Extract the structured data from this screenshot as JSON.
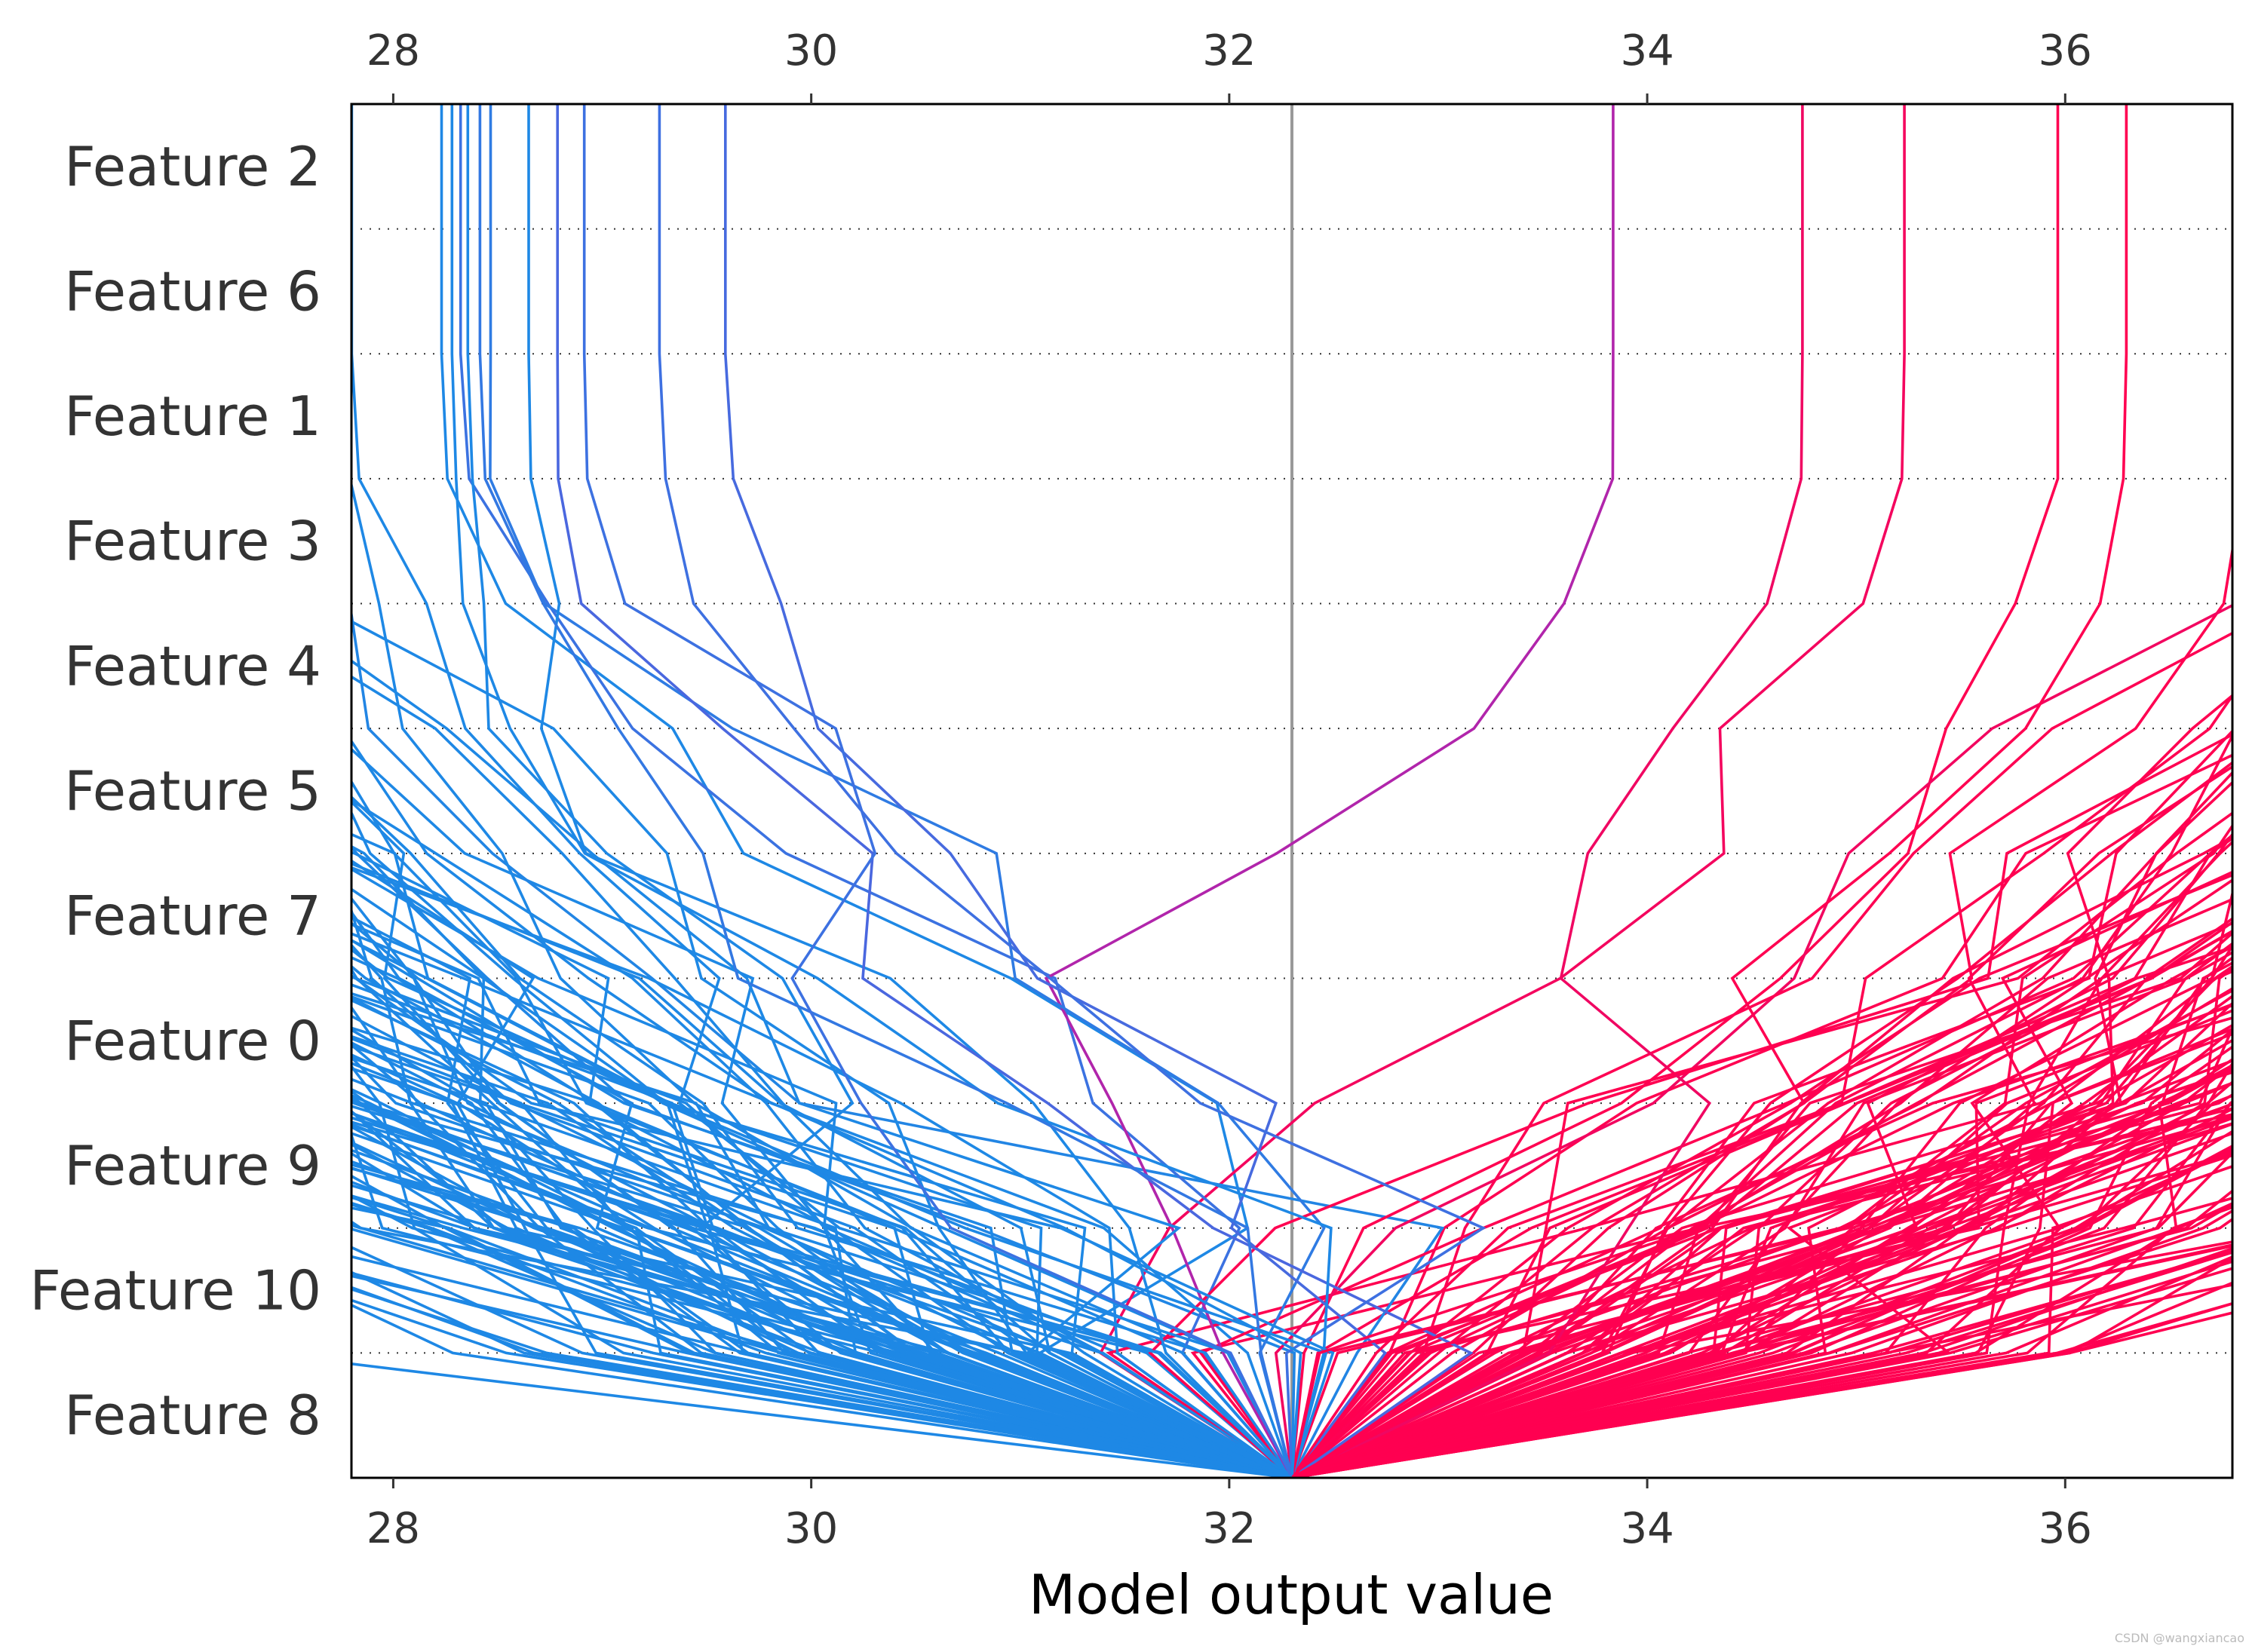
{
  "chart_data": {
    "type": "line",
    "subtype": "shap-decision-plot",
    "title": "",
    "xlabel": "Model output value",
    "ylabel": "",
    "xlim": [
      27.8,
      36.8
    ],
    "xticks": [
      28,
      30,
      32,
      34,
      36
    ],
    "xtick_labels_top": [
      "28",
      "30",
      "32",
      "34",
      "36"
    ],
    "xtick_labels_bottom": [
      "28",
      "30",
      "32",
      "34",
      "36"
    ],
    "base_value": 32.3,
    "features": [
      "Feature 2",
      "Feature 6",
      "Feature 1",
      "Feature 3",
      "Feature 4",
      "Feature 5",
      "Feature 7",
      "Feature 0",
      "Feature 9",
      "Feature 10",
      "Feature 8"
    ],
    "color_scale": [
      "#1E88E5",
      "#8C36D6",
      "#FF0051"
    ],
    "n_samples": 240,
    "sample_seed": 7,
    "feature_effect_scale": [
      0.0,
      0.0,
      0.02,
      0.22,
      0.65,
      0.85,
      0.95,
      1.15,
      1.35,
      1.55,
      2.0
    ],
    "grid": "dotted-horizontal",
    "legend": "none"
  },
  "watermark": "CSDN @wangxiancao"
}
